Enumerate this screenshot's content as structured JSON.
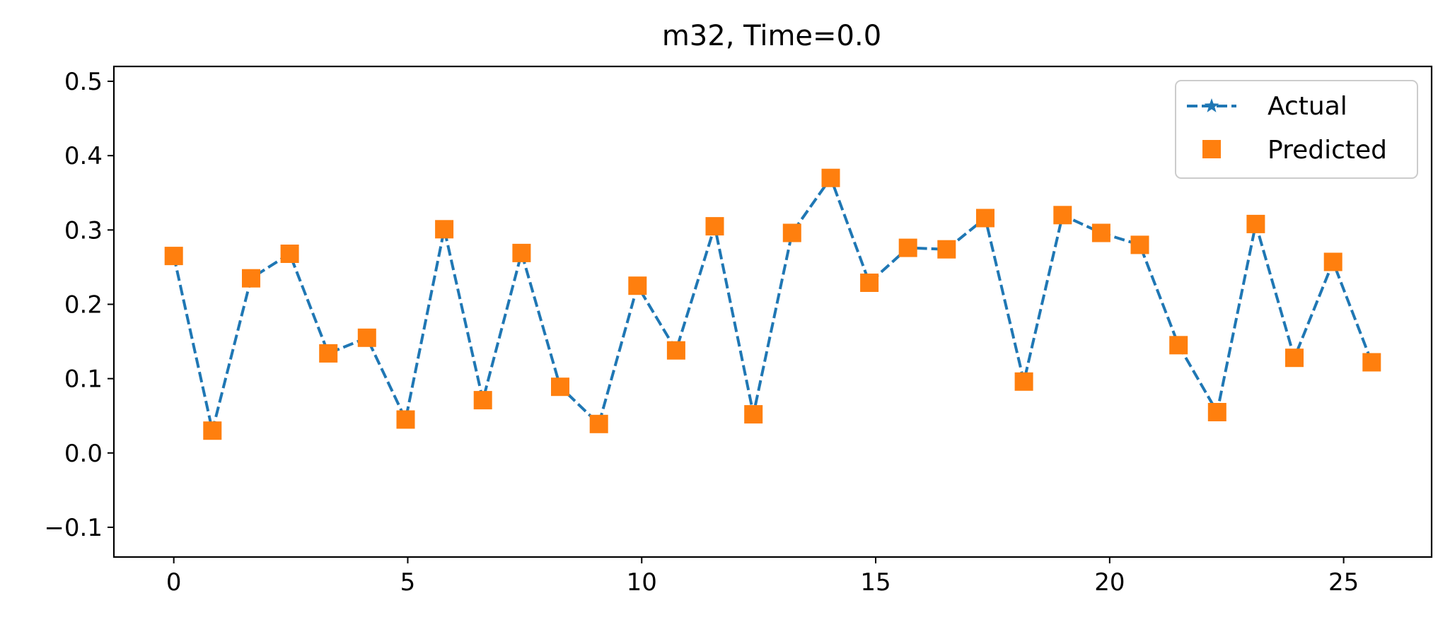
{
  "chart_data": {
    "type": "line",
    "title": "m32, Time=0.0",
    "xlabel": "",
    "ylabel": "",
    "xlim": [
      -1.28,
      26.88
    ],
    "ylim": [
      -0.14,
      0.52
    ],
    "xticks": [
      0,
      5,
      10,
      15,
      20,
      25
    ],
    "xtick_labels": [
      "0",
      "5",
      "10",
      "15",
      "20",
      "25"
    ],
    "yticks": [
      -0.1,
      0.0,
      0.1,
      0.2,
      0.3,
      0.4,
      0.5
    ],
    "ytick_labels": [
      "−0.1",
      "0.0",
      "0.1",
      "0.2",
      "0.3",
      "0.4",
      "0.5"
    ],
    "grid": false,
    "legend_position": "top-right",
    "x": [
      0,
      0.826,
      1.652,
      2.477,
      3.303,
      4.129,
      4.955,
      5.781,
      6.606,
      7.432,
      8.258,
      9.084,
      9.91,
      10.735,
      11.561,
      12.387,
      13.213,
      14.039,
      14.865,
      15.69,
      16.516,
      17.342,
      18.168,
      18.994,
      19.819,
      20.645,
      21.471,
      22.297,
      23.123,
      23.948,
      24.774,
      25.6
    ],
    "series": [
      {
        "name": "Actual",
        "style": "dashed line with star markers",
        "color": "#1f77b4",
        "values": [
          0.265,
          0.03,
          0.235,
          0.268,
          0.134,
          0.155,
          0.045,
          0.301,
          0.071,
          0.269,
          0.089,
          0.039,
          0.225,
          0.138,
          0.305,
          0.052,
          0.296,
          0.37,
          0.229,
          0.276,
          0.274,
          0.316,
          0.096,
          0.32,
          0.296,
          0.28,
          0.145,
          0.055,
          0.308,
          0.128,
          0.257,
          0.122
        ]
      },
      {
        "name": "Predicted",
        "style": "square markers",
        "color": "#ff7f0e",
        "values": [
          0.265,
          0.03,
          0.235,
          0.268,
          0.134,
          0.155,
          0.045,
          0.301,
          0.071,
          0.269,
          0.089,
          0.039,
          0.225,
          0.138,
          0.305,
          0.052,
          0.296,
          0.37,
          0.229,
          0.276,
          0.274,
          0.316,
          0.096,
          0.32,
          0.296,
          0.28,
          0.145,
          0.055,
          0.308,
          0.128,
          0.257,
          0.122
        ]
      }
    ]
  }
}
